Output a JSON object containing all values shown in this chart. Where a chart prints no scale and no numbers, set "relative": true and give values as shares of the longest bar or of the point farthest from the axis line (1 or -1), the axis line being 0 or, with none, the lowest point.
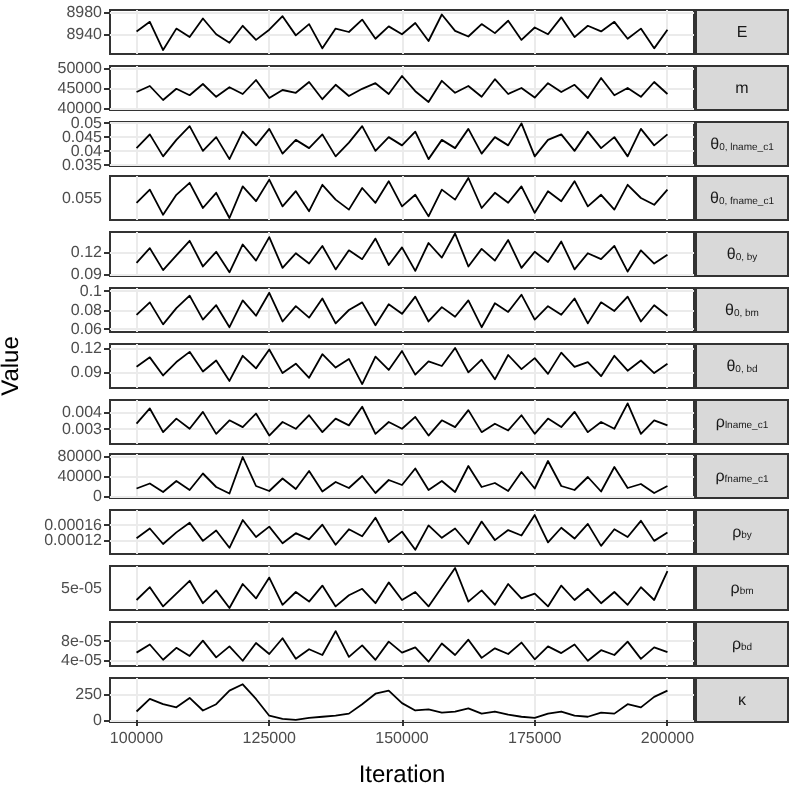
{
  "chart_data": [
    {
      "type": "line",
      "grid": true,
      "tick_labels": "y",
      "xlim": [
        95000,
        205000
      ],
      "xticks": [
        100000,
        125000,
        150000,
        175000,
        200000
      ],
      "ylim": [
        8905,
        8983
      ],
      "yticks": [
        8940,
        8980
      ],
      "x": [
        100000,
        102500,
        105000,
        107500,
        110000,
        112500,
        115000,
        117500,
        120000,
        122500,
        125000,
        127500,
        130000,
        132500,
        135000,
        137500,
        140000,
        142500,
        145000,
        147500,
        150000,
        152500,
        155000,
        157500,
        160000,
        162500,
        165000,
        167500,
        170000,
        172500,
        175000,
        177500,
        180000,
        182500,
        185000,
        187500,
        190000,
        192500,
        195000,
        197500,
        200000
      ],
      "series": [
        {
          "name": "E",
          "color": "#000000",
          "values": [
            8945,
            8962,
            8912,
            8950,
            8935,
            8968,
            8940,
            8925,
            8955,
            8930,
            8948,
            8972,
            8938,
            8958,
            8915,
            8950,
            8944,
            8966,
            8932,
            8954,
            8940,
            8960,
            8928,
            8975,
            8946,
            8936,
            8958,
            8942,
            8964,
            8930,
            8952,
            8940,
            8970,
            8935,
            8955,
            8945,
            8962,
            8932,
            8950,
            8915,
            8948
          ]
        }
      ]
    },
    {
      "type": "line",
      "grid": true,
      "tick_labels": "y",
      "xlim": [
        95000,
        205000
      ],
      "xticks": [
        100000,
        125000,
        150000,
        175000,
        200000
      ],
      "ylim": [
        39500,
        50500
      ],
      "yticks": [
        40000,
        45000,
        50000
      ],
      "x": [
        100000,
        102500,
        105000,
        107500,
        110000,
        112500,
        115000,
        117500,
        120000,
        122500,
        125000,
        127500,
        130000,
        132500,
        135000,
        137500,
        140000,
        142500,
        145000,
        147500,
        150000,
        152500,
        155000,
        157500,
        160000,
        162500,
        165000,
        167500,
        170000,
        172500,
        175000,
        177500,
        180000,
        182500,
        185000,
        187500,
        190000,
        192500,
        195000,
        197500,
        200000
      ],
      "series": [
        {
          "name": "m",
          "color": "#000000",
          "values": [
            44000,
            45500,
            42000,
            44800,
            43200,
            46000,
            42800,
            45200,
            43500,
            47000,
            42500,
            44500,
            43800,
            46500,
            42200,
            45800,
            43000,
            44800,
            46200,
            43500,
            48000,
            44200,
            41500,
            46800,
            43800,
            45500,
            42800,
            47200,
            43500,
            45000,
            42600,
            46200,
            44000,
            45800,
            42500,
            47500,
            43200,
            45000,
            42800,
            46500,
            43500
          ]
        }
      ]
    },
    {
      "type": "line",
      "grid": true,
      "tick_labels": "y",
      "xlim": [
        95000,
        205000
      ],
      "xticks": [
        100000,
        125000,
        150000,
        175000,
        200000
      ],
      "ylim": [
        0.0345,
        0.0505
      ],
      "yticks": [
        0.035,
        0.04,
        0.045,
        0.05
      ],
      "x": [
        100000,
        102500,
        105000,
        107500,
        110000,
        112500,
        115000,
        117500,
        120000,
        122500,
        125000,
        127500,
        130000,
        132500,
        135000,
        137500,
        140000,
        142500,
        145000,
        147500,
        150000,
        152500,
        155000,
        157500,
        160000,
        162500,
        165000,
        167500,
        170000,
        172500,
        175000,
        177500,
        180000,
        182500,
        185000,
        187500,
        190000,
        192500,
        195000,
        197500,
        200000
      ],
      "series": [
        {
          "name": "θ$_{0, lname_c1}$",
          "color": "#000000",
          "values": [
            0.041,
            0.046,
            0.038,
            0.044,
            0.049,
            0.04,
            0.045,
            0.037,
            0.047,
            0.042,
            0.048,
            0.039,
            0.044,
            0.041,
            0.046,
            0.038,
            0.043,
            0.049,
            0.04,
            0.045,
            0.042,
            0.047,
            0.037,
            0.044,
            0.041,
            0.048,
            0.039,
            0.045,
            0.042,
            0.05,
            0.038,
            0.044,
            0.046,
            0.04,
            0.047,
            0.041,
            0.045,
            0.038,
            0.048,
            0.042,
            0.046
          ]
        }
      ]
    },
    {
      "type": "line",
      "relative": true,
      "annotations": [
        "0.055"
      ],
      "grid": true,
      "tick_labels": "y",
      "xlim": [
        95000,
        205000
      ],
      "xticks": [
        100000,
        125000,
        150000,
        175000,
        200000
      ],
      "x": [
        100000,
        102500,
        105000,
        107500,
        110000,
        112500,
        115000,
        117500,
        120000,
        122500,
        125000,
        127500,
        130000,
        132500,
        135000,
        137500,
        140000,
        142500,
        145000,
        147500,
        150000,
        152500,
        155000,
        157500,
        160000,
        162500,
        165000,
        167500,
        170000,
        172500,
        175000,
        177500,
        180000,
        182500,
        185000,
        187500,
        190000,
        192500,
        195000,
        197500,
        200000
      ],
      "series": [
        {
          "name": "θ$_{0, fname_c1}$",
          "color": "#000000",
          "values": [
            0.38,
            0.71,
            0.08,
            0.58,
            0.88,
            0.25,
            0.63,
            0,
            0.79,
            0.42,
            0.96,
            0.29,
            0.67,
            0.17,
            0.83,
            0.46,
            0.21,
            0.75,
            0.38,
            0.92,
            0.29,
            0.58,
            0.04,
            0.71,
            0.46,
            1,
            0.25,
            0.63,
            0.38,
            0.79,
            0.13,
            0.67,
            0.42,
            0.92,
            0.29,
            0.58,
            0.21,
            0.83,
            0.5,
            0.33,
            0.71
          ]
        }
      ]
    },
    {
      "type": "line",
      "grid": true,
      "tick_labels": "y",
      "xlim": [
        95000,
        205000
      ],
      "xticks": [
        100000,
        125000,
        150000,
        175000,
        200000
      ],
      "ylim": [
        0.087,
        0.147
      ],
      "yticks": [
        0.09,
        0.12
      ],
      "x": [
        100000,
        102500,
        105000,
        107500,
        110000,
        112500,
        115000,
        117500,
        120000,
        122500,
        125000,
        127500,
        130000,
        132500,
        135000,
        137500,
        140000,
        142500,
        145000,
        147500,
        150000,
        152500,
        155000,
        157500,
        160000,
        162500,
        165000,
        167500,
        170000,
        172500,
        175000,
        177500,
        180000,
        182500,
        185000,
        187500,
        190000,
        192500,
        195000,
        197500,
        200000
      ],
      "series": [
        {
          "name": "θ$_{0, by}$",
          "color": "#000000",
          "values": [
            0.105,
            0.125,
            0.095,
            0.115,
            0.135,
            0.1,
            0.12,
            0.092,
            0.13,
            0.108,
            0.14,
            0.098,
            0.118,
            0.104,
            0.128,
            0.096,
            0.122,
            0.11,
            0.138,
            0.102,
            0.126,
            0.094,
            0.132,
            0.112,
            0.145,
            0.1,
            0.124,
            0.108,
            0.136,
            0.098,
            0.12,
            0.106,
            0.134,
            0.096,
            0.118,
            0.11,
            0.128,
            0.093,
            0.122,
            0.104,
            0.116
          ]
        }
      ]
    },
    {
      "type": "line",
      "grid": true,
      "tick_labels": "y",
      "xlim": [
        95000,
        205000
      ],
      "xticks": [
        100000,
        125000,
        150000,
        175000,
        200000
      ],
      "ylim": [
        0.057,
        0.103
      ],
      "yticks": [
        0.06,
        0.08,
        0.1
      ],
      "x": [
        100000,
        102500,
        105000,
        107500,
        110000,
        112500,
        115000,
        117500,
        120000,
        122500,
        125000,
        127500,
        130000,
        132500,
        135000,
        137500,
        140000,
        142500,
        145000,
        147500,
        150000,
        152500,
        155000,
        157500,
        160000,
        162500,
        165000,
        167500,
        170000,
        172500,
        175000,
        177500,
        180000,
        182500,
        185000,
        187500,
        190000,
        192500,
        195000,
        197500,
        200000
      ],
      "series": [
        {
          "name": "θ$_{0, bm}$",
          "color": "#000000",
          "values": [
            0.075,
            0.088,
            0.065,
            0.082,
            0.095,
            0.07,
            0.085,
            0.062,
            0.09,
            0.074,
            0.098,
            0.068,
            0.084,
            0.072,
            0.092,
            0.066,
            0.08,
            0.088,
            0.064,
            0.086,
            0.076,
            0.094,
            0.068,
            0.083,
            0.073,
            0.09,
            0.062,
            0.087,
            0.078,
            0.096,
            0.07,
            0.084,
            0.075,
            0.092,
            0.066,
            0.088,
            0.079,
            0.094,
            0.068,
            0.085,
            0.074
          ]
        }
      ]
    },
    {
      "type": "line",
      "ylabel": "Value",
      "grid": true,
      "tick_labels": "y",
      "xlim": [
        95000,
        205000
      ],
      "xticks": [
        100000,
        125000,
        150000,
        175000,
        200000
      ],
      "ylim": [
        0.069,
        0.125
      ],
      "yticks": [
        0.09,
        0.12
      ],
      "x": [
        100000,
        102500,
        105000,
        107500,
        110000,
        112500,
        115000,
        117500,
        120000,
        122500,
        125000,
        127500,
        130000,
        132500,
        135000,
        137500,
        140000,
        142500,
        145000,
        147500,
        150000,
        152500,
        155000,
        157500,
        160000,
        162500,
        165000,
        167500,
        170000,
        172500,
        175000,
        177500,
        180000,
        182500,
        185000,
        187500,
        190000,
        192500,
        195000,
        197500,
        200000
      ],
      "series": [
        {
          "name": "θ$_{0, bd}$",
          "color": "#000000",
          "values": [
            0.096,
            0.108,
            0.085,
            0.102,
            0.115,
            0.09,
            0.104,
            0.078,
            0.11,
            0.094,
            0.118,
            0.088,
            0.1,
            0.082,
            0.112,
            0.095,
            0.106,
            0.074,
            0.109,
            0.092,
            0.116,
            0.086,
            0.103,
            0.097,
            0.12,
            0.089,
            0.105,
            0.08,
            0.111,
            0.093,
            0.107,
            0.087,
            0.114,
            0.096,
            0.102,
            0.084,
            0.11,
            0.091,
            0.104,
            0.088,
            0.1
          ]
        }
      ]
    },
    {
      "type": "line",
      "grid": true,
      "tick_labels": "y",
      "xlim": [
        95000,
        205000
      ],
      "xticks": [
        100000,
        125000,
        150000,
        175000,
        200000
      ],
      "ylim": [
        0.0021,
        0.0047
      ],
      "yticks": [
        0.003,
        0.004
      ],
      "x": [
        100000,
        102500,
        105000,
        107500,
        110000,
        112500,
        115000,
        117500,
        120000,
        122500,
        125000,
        127500,
        130000,
        132500,
        135000,
        137500,
        140000,
        142500,
        145000,
        147500,
        150000,
        152500,
        155000,
        157500,
        160000,
        162500,
        165000,
        167500,
        170000,
        172500,
        175000,
        177500,
        180000,
        182500,
        185000,
        187500,
        190000,
        192500,
        195000,
        197500,
        200000
      ],
      "series": [
        {
          "name": "ρ$_{lname_c1}$",
          "color": "#000000",
          "values": [
            0.0033,
            0.0042,
            0.0028,
            0.0036,
            0.003,
            0.004,
            0.0027,
            0.0035,
            0.0031,
            0.0039,
            0.0026,
            0.0034,
            0.003,
            0.0038,
            0.0028,
            0.0036,
            0.0032,
            0.0043,
            0.0027,
            0.0034,
            0.003,
            0.0037,
            0.0026,
            0.0035,
            0.0031,
            0.0041,
            0.0028,
            0.0033,
            0.0029,
            0.0038,
            0.0027,
            0.0036,
            0.0031,
            0.004,
            0.0028,
            0.0034,
            0.003,
            0.0045,
            0.0027,
            0.0035,
            0.0032
          ]
        }
      ]
    },
    {
      "type": "line",
      "grid": true,
      "tick_labels": "y",
      "xlim": [
        95000,
        205000
      ],
      "xticks": [
        100000,
        125000,
        150000,
        175000,
        200000
      ],
      "ylim": [
        -4000,
        84000
      ],
      "yticks": [
        0,
        40000,
        80000
      ],
      "x": [
        100000,
        102500,
        105000,
        107500,
        110000,
        112500,
        115000,
        117500,
        120000,
        122500,
        125000,
        127500,
        130000,
        132500,
        135000,
        137500,
        140000,
        142500,
        145000,
        147500,
        150000,
        152500,
        155000,
        157500,
        160000,
        162500,
        165000,
        167500,
        170000,
        172500,
        175000,
        177500,
        180000,
        182500,
        185000,
        187500,
        190000,
        192500,
        195000,
        197500,
        200000
      ],
      "series": [
        {
          "name": "ρ$_{fname_c1}$",
          "color": "#000000",
          "values": [
            15000,
            25000,
            8000,
            30000,
            12000,
            45000,
            18000,
            5000,
            78000,
            20000,
            10000,
            35000,
            14000,
            50000,
            9000,
            28000,
            16000,
            40000,
            6000,
            32000,
            22000,
            55000,
            12000,
            30000,
            8000,
            60000,
            18000,
            26000,
            10000,
            48000,
            15000,
            70000,
            20000,
            12000,
            38000,
            9000,
            58000,
            16000,
            24000,
            6000,
            20000
          ]
        }
      ]
    },
    {
      "type": "line",
      "grid": true,
      "tick_labels": "y",
      "xlim": [
        95000,
        205000
      ],
      "xticks": [
        100000,
        125000,
        150000,
        175000,
        200000
      ],
      "ylim": [
        8.4e-05,
        0.000198
      ],
      "yticks": [
        0.00012,
        0.00016
      ],
      "x": [
        100000,
        102500,
        105000,
        107500,
        110000,
        112500,
        115000,
        117500,
        120000,
        122500,
        125000,
        127500,
        130000,
        132500,
        135000,
        137500,
        140000,
        142500,
        145000,
        147500,
        150000,
        152500,
        155000,
        157500,
        160000,
        162500,
        165000,
        167500,
        170000,
        172500,
        175000,
        177500,
        180000,
        182500,
        185000,
        187500,
        190000,
        192500,
        195000,
        197500,
        200000
      ],
      "series": [
        {
          "name": "ρ$_{by}$",
          "color": "#000000",
          "values": [
            0.000125,
            0.00015,
            0.00011,
            0.00014,
            0.000165,
            0.000118,
            0.000145,
            0.0001,
            0.000172,
            0.000128,
            0.000155,
            0.000112,
            0.000138,
            0.000122,
            0.00016,
            0.000108,
            0.000148,
            0.00013,
            0.000178,
            0.000115,
            0.000142,
            9.5e-05,
            0.000158,
            0.000126,
            0.00015,
            0.00011,
            0.000168,
            0.00012,
            0.000146,
            0.000132,
            0.000185,
            0.000114,
            0.000152,
            0.000124,
            0.000162,
            0.000105,
            0.000148,
            0.000128,
            0.00017,
            0.000118,
            0.00014
          ]
        }
      ]
    },
    {
      "type": "line",
      "relative": true,
      "annotations": [
        "5e-05"
      ],
      "grid": true,
      "tick_labels": "y",
      "xlim": [
        95000,
        205000
      ],
      "xticks": [
        100000,
        125000,
        150000,
        175000,
        200000
      ],
      "x": [
        100000,
        102500,
        105000,
        107500,
        110000,
        112500,
        115000,
        117500,
        120000,
        122500,
        125000,
        127500,
        130000,
        132500,
        135000,
        137500,
        140000,
        142500,
        145000,
        147500,
        150000,
        152500,
        155000,
        157500,
        160000,
        162500,
        165000,
        167500,
        170000,
        172500,
        175000,
        177500,
        180000,
        182500,
        185000,
        187500,
        190000,
        192500,
        195000,
        197500,
        200000
      ],
      "series": [
        {
          "name": "ρ$_{bm}$",
          "color": "#000000",
          "values": [
            0.2,
            0.52,
            0.04,
            0.36,
            0.68,
            0.12,
            0.44,
            0,
            0.6,
            0.24,
            0.76,
            0.08,
            0.4,
            0.16,
            0.56,
            0.04,
            0.32,
            0.48,
            0.12,
            0.64,
            0.2,
            0.4,
            0.04,
            0.52,
            1,
            0.16,
            0.44,
            0.08,
            0.6,
            0.24,
            0.36,
            0.04,
            0.56,
            0.2,
            0.48,
            0.12,
            0.4,
            0.08,
            0.52,
            0.2,
            0.92
          ]
        }
      ]
    },
    {
      "type": "line",
      "grid": true,
      "tick_labels": "y",
      "xlim": [
        95000,
        205000
      ],
      "xticks": [
        100000,
        125000,
        150000,
        175000,
        200000
      ],
      "ylim": [
        2.7e-05,
        0.000119
      ],
      "yticks": [
        {
          "value": 4e-05,
          "label": "4e-05"
        },
        {
          "value": 8e-05,
          "label": "8e-05"
        }
      ],
      "x": [
        100000,
        102500,
        105000,
        107500,
        110000,
        112500,
        115000,
        117500,
        120000,
        122500,
        125000,
        127500,
        130000,
        132500,
        135000,
        137500,
        140000,
        142500,
        145000,
        147500,
        150000,
        152500,
        155000,
        157500,
        160000,
        162500,
        165000,
        167500,
        170000,
        172500,
        175000,
        177500,
        180000,
        182500,
        185000,
        187500,
        190000,
        192500,
        195000,
        197500,
        200000
      ],
      "series": [
        {
          "name": "ρ$_{bd}$",
          "color": "#000000",
          "values": [
            5.5e-05,
            7.2e-05,
            4e-05,
            6.5e-05,
            4.8e-05,
            8e-05,
            4.5e-05,
            6.8e-05,
            3.8e-05,
            7.5e-05,
            5.2e-05,
            8.5e-05,
            4.2e-05,
            6.2e-05,
            5e-05,
            0.0001,
            4.6e-05,
            7e-05,
            4e-05,
            7.8e-05,
            5.5e-05,
            6.6e-05,
            3.6e-05,
            7.4e-05,
            5e-05,
            8.2e-05,
            4.4e-05,
            6.4e-05,
            5.2e-05,
            7.6e-05,
            4.1e-05,
            6.8e-05,
            5.4e-05,
            7.2e-05,
            3.8e-05,
            6e-05,
            5e-05,
            7.8e-05,
            4.2e-05,
            6.6e-05,
            5.6e-05
          ]
        }
      ]
    },
    {
      "type": "line",
      "xlabel": "Iteration",
      "grid": true,
      "xlim": [
        95000,
        205000
      ],
      "xticks": [
        100000,
        125000,
        150000,
        175000,
        200000
      ],
      "ylim": [
        -20,
        400
      ],
      "yticks": [
        0,
        250
      ],
      "x": [
        100000,
        102500,
        105000,
        107500,
        110000,
        112500,
        115000,
        117500,
        120000,
        122500,
        125000,
        127500,
        130000,
        132500,
        135000,
        137500,
        140000,
        142500,
        145000,
        147500,
        150000,
        152500,
        155000,
        157500,
        160000,
        162500,
        165000,
        167500,
        170000,
        172500,
        175000,
        177500,
        180000,
        182500,
        185000,
        187500,
        190000,
        192500,
        195000,
        197500,
        200000
      ],
      "series": [
        {
          "name": "κ",
          "color": "#000000",
          "values": [
            80,
            200,
            150,
            120,
            210,
            90,
            150,
            280,
            340,
            200,
            40,
            10,
            0,
            20,
            30,
            40,
            60,
            150,
            250,
            280,
            160,
            90,
            100,
            70,
            80,
            110,
            60,
            80,
            50,
            30,
            20,
            60,
            80,
            40,
            30,
            70,
            60,
            150,
            120,
            220,
            280
          ]
        }
      ]
    }
  ]
}
